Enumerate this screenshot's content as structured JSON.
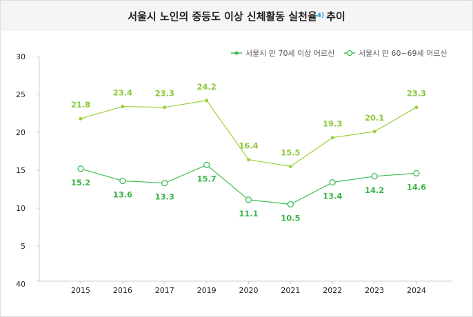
{
  "chart_data": {
    "type": "line",
    "title": "서울시 노인의 중등도 이상 신체활동 실천율",
    "title_footnote": "4)",
    "title_suffix": "추이",
    "categories": [
      "2015",
      "2016",
      "2017",
      "2019",
      "2020",
      "2021",
      "2022",
      "2023",
      "2024"
    ],
    "y_ticks": [
      "40",
      "5",
      "10",
      "15",
      "20",
      "25",
      "30"
    ],
    "ylim": [
      0,
      30
    ],
    "grid": false,
    "legend_position": "top-right",
    "series": [
      {
        "name": "서울시 만 70세 이상 어르신",
        "color": "#9ad23c",
        "label_color": "#8cc83a",
        "legend_color": "#3dba55",
        "marker": "filled",
        "values": [
          21.8,
          23.4,
          23.3,
          24.2,
          16.4,
          15.5,
          19.3,
          20.1,
          23.3
        ]
      },
      {
        "name": "서울시 만 60~69세 어르신",
        "color": "#3dbf57",
        "label_color": "#3ab54a",
        "legend_color": "#3dbf57",
        "marker": "hollow",
        "values": [
          15.2,
          13.6,
          13.3,
          15.7,
          11.1,
          10.5,
          13.4,
          14.2,
          14.6
        ]
      }
    ]
  }
}
